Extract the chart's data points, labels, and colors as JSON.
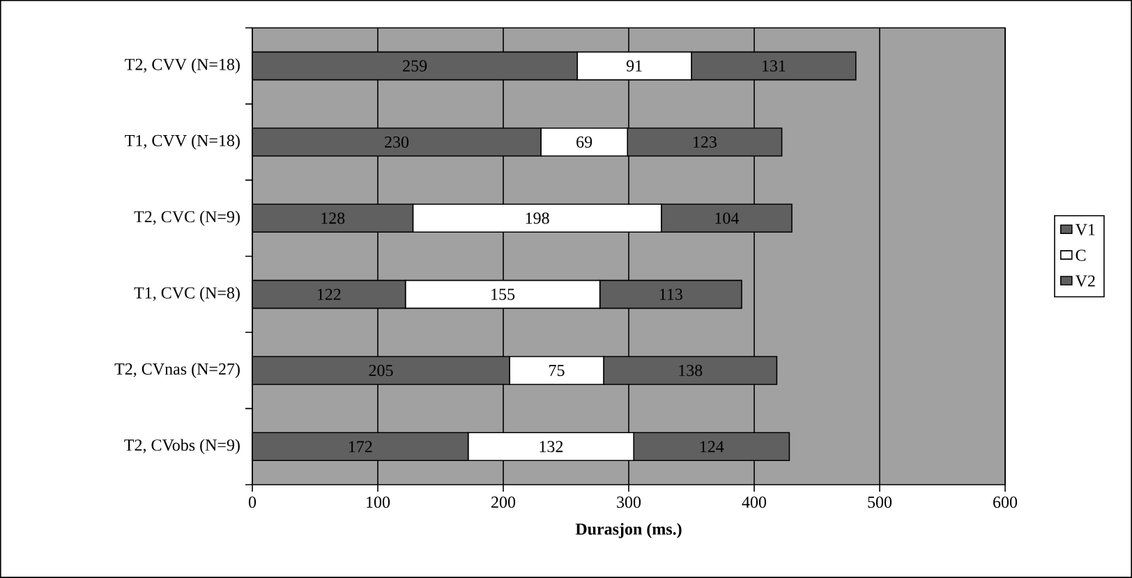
{
  "chart_data": {
    "type": "bar",
    "orientation": "horizontal",
    "stacked": true,
    "xlabel": "Durasjon (ms.)",
    "categories": [
      "T2, CVV (N=18)",
      "T1, CVV (N=18)",
      "T2, CVC (N=9)",
      "T1, CVC (N=8)",
      "T2, CVnas (N=27)",
      "T2, CVobs (N=9)"
    ],
    "series": [
      {
        "name": "V1",
        "color": "#606060",
        "values": [
          259,
          230,
          128,
          122,
          205,
          172
        ]
      },
      {
        "name": "C",
        "color": "#ffffff",
        "values": [
          91,
          69,
          198,
          155,
          75,
          132
        ]
      },
      {
        "name": "V2",
        "color": "#606060",
        "values": [
          131,
          123,
          104,
          113,
          138,
          124
        ]
      }
    ],
    "xlim": [
      0,
      600
    ],
    "xticks": [
      0,
      100,
      200,
      300,
      400,
      500,
      600
    ],
    "grid": "x",
    "legend": "right",
    "data_labels": true
  }
}
